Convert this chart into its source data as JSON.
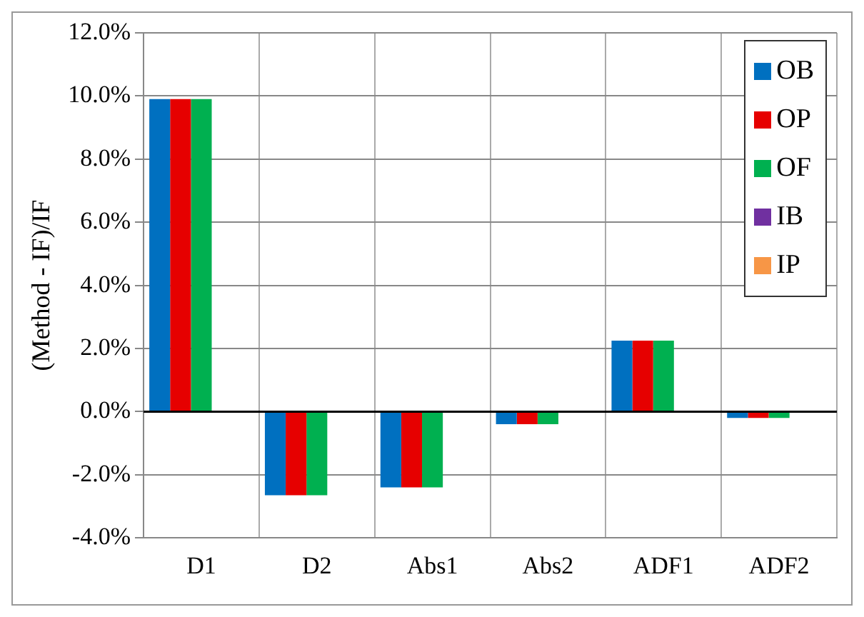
{
  "chart_data": {
    "type": "bar",
    "ylabel": "(Method - IF)/IF",
    "categories": [
      "D1",
      "D2",
      "Abs1",
      "Abs2",
      "ADF1",
      "ADF2"
    ],
    "series": [
      {
        "name": "OB",
        "color": "#0070c0",
        "values": [
          9.9,
          -2.65,
          -2.4,
          -0.4,
          2.25,
          -0.2
        ]
      },
      {
        "name": "OP",
        "color": "#e60000",
        "values": [
          9.9,
          -2.65,
          -2.4,
          -0.4,
          2.25,
          -0.2
        ]
      },
      {
        "name": "OF",
        "color": "#00b050",
        "values": [
          9.9,
          -2.65,
          -2.4,
          -0.4,
          2.25,
          -0.2
        ]
      },
      {
        "name": "IB",
        "color": "#7030a0",
        "values": [
          null,
          null,
          null,
          null,
          null,
          null
        ]
      },
      {
        "name": "IP",
        "color": "#f79646",
        "values": [
          null,
          null,
          null,
          null,
          null,
          null
        ]
      }
    ],
    "ylim": [
      -4,
      12
    ],
    "yticks": [
      {
        "value": -4,
        "label": "-4.0%"
      },
      {
        "value": -2,
        "label": "-2.0%"
      },
      {
        "value": 0,
        "label": "0.0%"
      },
      {
        "value": 2,
        "label": "2.0%"
      },
      {
        "value": 4,
        "label": "4.0%"
      },
      {
        "value": 6,
        "label": "6.0%"
      },
      {
        "value": 8,
        "label": "8.0%"
      },
      {
        "value": 10,
        "label": "10.0%"
      },
      {
        "value": 12,
        "label": "12.0%"
      }
    ],
    "grid": true,
    "legend": "top right"
  }
}
